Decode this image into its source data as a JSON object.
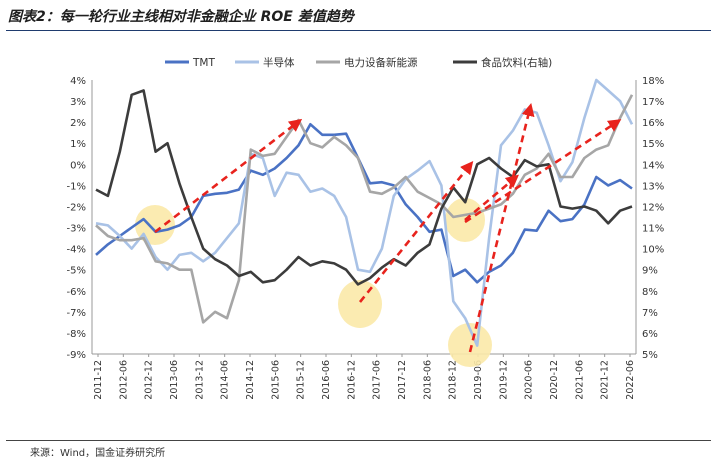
{
  "header": {
    "title": "图表2：每一轮行业主线相对非金融企业 ROE 差值趋势"
  },
  "footer": {
    "source": "来源：Wind，国金证券研究所"
  },
  "colors": {
    "tmt": "#4a72c4",
    "semiconductor": "#a9c2e6",
    "power_equipment": "#a6a6a6",
    "food_beverage": "#3c3c3c",
    "arrow": "#e8231d",
    "highlight": "#fbe9a8"
  },
  "chart_data": {
    "type": "line",
    "x_tick_labels": [
      "2011-12",
      "2012-06",
      "2012-12",
      "2013-06",
      "2013-12",
      "2014-06",
      "2014-12",
      "2015-06",
      "2015-12",
      "2016-06",
      "2016-12",
      "2017-06",
      "2017-12",
      "2018-06",
      "2018-12",
      "2019-06",
      "2019-12",
      "2020-06",
      "2020-12",
      "2021-06",
      "2021-12",
      "2022-06"
    ],
    "left_axis": {
      "ylim": [
        -9,
        4
      ],
      "ticks": [
        "-9%",
        "-8%",
        "-7%",
        "-6%",
        "-5%",
        "-4%",
        "-3%",
        "-2%",
        "-1%",
        "0%",
        "1%",
        "2%",
        "3%",
        "4%"
      ]
    },
    "right_axis": {
      "ylim": [
        5,
        18
      ],
      "ticks": [
        "5%",
        "6%",
        "7%",
        "8%",
        "9%",
        "10%",
        "11%",
        "12%",
        "13%",
        "14%",
        "15%",
        "16%",
        "17%",
        "18%"
      ]
    },
    "legend_position": "top",
    "series": [
      {
        "name": "TMT",
        "axis": "left",
        "values": [
          -4.3,
          -3.8,
          -3.4,
          -3.0,
          -2.6,
          -3.2,
          -3.1,
          -2.9,
          -2.5,
          -1.5,
          -1.4,
          -1.35,
          -1.2,
          -0.3,
          -0.5,
          -0.2,
          0.3,
          0.9,
          1.9,
          1.4,
          1.4,
          1.45,
          0.3,
          -0.9,
          -0.85,
          -1.0,
          -1.9,
          -2.5,
          -3.2,
          -3.1,
          -5.3,
          -5.0,
          -5.6,
          -5.1,
          -4.8,
          -4.2,
          -3.1,
          -3.15,
          -2.2,
          -2.7,
          -2.6,
          -1.9,
          -0.6,
          -1.0,
          -0.75,
          -1.15
        ]
      },
      {
        "name": "半导体",
        "axis": "left",
        "values": [
          -2.8,
          -2.9,
          -3.4,
          -4.0,
          -3.3,
          -4.4,
          -5.0,
          -4.3,
          -4.2,
          -4.6,
          -4.2,
          -3.5,
          -2.8,
          0.5,
          0.3,
          -1.5,
          -0.4,
          -0.5,
          -1.3,
          -1.15,
          -1.5,
          -2.5,
          -5.0,
          -5.1,
          -4.0,
          -1.5,
          -0.7,
          -0.3,
          0.15,
          -1.0,
          -6.5,
          -7.3,
          -8.6,
          -3.5,
          0.9,
          1.6,
          2.6,
          2.45,
          0.9,
          -0.8,
          0.1,
          2.2,
          4.0,
          3.5,
          3.0,
          1.9
        ]
      },
      {
        "name": "电力设备新能源",
        "axis": "left",
        "values": [
          -2.9,
          -3.4,
          -3.6,
          -3.6,
          -3.5,
          -4.6,
          -4.7,
          -5.0,
          -5.0,
          -7.5,
          -7.0,
          -7.3,
          -5.5,
          0.7,
          0.4,
          0.5,
          1.3,
          2.1,
          1.0,
          0.8,
          1.3,
          0.9,
          0.3,
          -1.3,
          -1.4,
          -1.1,
          -0.6,
          -1.3,
          -1.6,
          -1.9,
          -2.5,
          -2.4,
          -2.3,
          -2.1,
          -1.9,
          -1.4,
          -0.5,
          -0.2,
          0.5,
          -0.6,
          -0.6,
          0.3,
          0.7,
          0.9,
          2.2,
          3.3
        ]
      },
      {
        "name": "食品饮料(右轴)",
        "axis": "right",
        "values": [
          12.8,
          12.5,
          14.6,
          17.3,
          17.5,
          14.6,
          15.0,
          13.1,
          11.5,
          10.0,
          9.5,
          9.2,
          8.7,
          8.9,
          8.4,
          8.5,
          9.0,
          9.6,
          9.2,
          9.4,
          9.3,
          9.0,
          8.3,
          8.6,
          9.1,
          9.5,
          9.2,
          9.8,
          10.2,
          11.9,
          12.9,
          12.2,
          14.0,
          14.3,
          13.8,
          13.4,
          14.2,
          13.9,
          14.0,
          12.0,
          11.9,
          12.0,
          11.8,
          11.2,
          11.8,
          12.0
        ]
      }
    ],
    "highlight_circles": [
      "2012-12",
      "2016-12",
      "2019-06",
      "2019-03"
    ],
    "trend_arrows": 6
  }
}
